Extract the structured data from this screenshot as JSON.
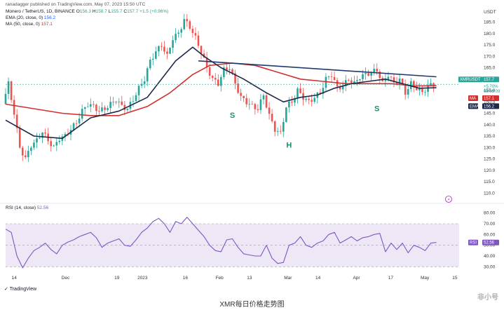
{
  "header": {
    "published_by": "ranadagger published on TradingView.com, May 07, 2023 15:50 UTC",
    "symbol_line": {
      "name": "Monero / TetherUS, 1D, BINANCE",
      "o_label": "O",
      "o": "156.3",
      "h_label": "H",
      "h": "158.7",
      "l_label": "L",
      "l": "155.7",
      "c_label": "C",
      "c": "157.7",
      "chg": "+1.5 (+0.96%)"
    },
    "ema_line": {
      "label": "EMA (20, close, 0)",
      "value": "156.2"
    },
    "ma_line": {
      "label": "MA (50, close, 0)",
      "value": "157.1"
    },
    "rsi_line": {
      "label": "RSI (14, close)",
      "value": "52.56"
    }
  },
  "tv_logo": "TradingView",
  "caption": "XMR每日价格走势图",
  "watermark": "非小号",
  "colors": {
    "up": "#26a69a",
    "down": "#ef5350",
    "ema": "#1e2a4a",
    "ma": "#d32f2f",
    "trendline": "#1e3a6e",
    "rsi": "#7e57c2",
    "rsi_band": "#ede7f6",
    "pattern_label": "#1b8f6a"
  },
  "badges": {
    "symbol": "XMRUSDT",
    "price": "157.7",
    "change": "+5.70%",
    "timer": "08:09:09",
    "ma_label": "MA",
    "ma_value": "157.1",
    "ema_label": "EMA",
    "ema_value": "156.2",
    "rsi_label": "RSI",
    "rsi_value": "52.56",
    "usdt": "USDT"
  },
  "pattern_labels": [
    "S",
    "H",
    "S"
  ],
  "chart_data": [
    {
      "type": "candlestick",
      "title": "Monero / TetherUS, 1D, BINANCE",
      "ylabel": "USDT",
      "ylim": [
        107,
        191
      ],
      "y_ticks": [
        "185.0",
        "180.0",
        "175.0",
        "170.0",
        "165.0",
        "160.0",
        "155.0",
        "150.0",
        "145.0",
        "140.0",
        "135.0",
        "130.0",
        "125.0",
        "120.0",
        "115.0",
        "110.0"
      ],
      "x_ticks": [
        "14",
        "Dec",
        "19",
        "2023",
        "16",
        "Feb",
        "13",
        "Mar",
        "14",
        "Apr",
        "17",
        "May",
        "15"
      ],
      "close_path": [
        [
          0,
          149
        ],
        [
          2,
          158
        ],
        [
          4,
          145
        ],
        [
          6,
          130
        ],
        [
          8,
          125
        ],
        [
          10,
          131
        ],
        [
          12,
          133
        ],
        [
          14,
          137
        ],
        [
          16,
          133
        ],
        [
          18,
          130
        ],
        [
          20,
          134
        ],
        [
          22,
          135
        ],
        [
          24,
          138
        ],
        [
          26,
          141
        ],
        [
          28,
          146
        ],
        [
          30,
          149
        ],
        [
          32,
          148
        ],
        [
          34,
          146
        ],
        [
          36,
          147
        ],
        [
          38,
          149
        ],
        [
          40,
          151
        ],
        [
          42,
          148
        ],
        [
          44,
          147
        ],
        [
          46,
          151
        ],
        [
          48,
          156
        ],
        [
          50,
          160
        ],
        [
          52,
          168
        ],
        [
          54,
          172
        ],
        [
          56,
          175
        ],
        [
          58,
          170
        ],
        [
          60,
          178
        ],
        [
          62,
          180
        ],
        [
          64,
          186
        ],
        [
          66,
          183
        ],
        [
          68,
          178
        ],
        [
          70,
          172
        ],
        [
          72,
          165
        ],
        [
          74,
          160
        ],
        [
          76,
          158
        ],
        [
          78,
          164
        ],
        [
          80,
          165
        ],
        [
          82,
          158
        ],
        [
          84,
          152
        ],
        [
          86,
          150
        ],
        [
          88,
          148
        ],
        [
          90,
          147
        ],
        [
          92,
          153
        ],
        [
          94,
          144
        ],
        [
          96,
          138
        ],
        [
          98,
          136
        ],
        [
          100,
          148
        ],
        [
          102,
          150
        ],
        [
          104,
          155
        ],
        [
          106,
          152
        ],
        [
          108,
          150
        ],
        [
          110,
          152
        ],
        [
          112,
          154
        ],
        [
          114,
          160
        ],
        [
          116,
          162
        ],
        [
          118,
          156
        ],
        [
          120,
          157
        ],
        [
          122,
          160
        ],
        [
          124,
          158
        ],
        [
          126,
          161
        ],
        [
          128,
          162
        ],
        [
          130,
          163
        ],
        [
          132,
          164
        ],
        [
          134,
          158
        ],
        [
          136,
          162
        ],
        [
          138,
          158
        ],
        [
          140,
          160
        ],
        [
          142,
          154
        ],
        [
          144,
          158
        ],
        [
          146,
          156
        ],
        [
          148,
          154
        ],
        [
          150,
          157
        ],
        [
          152,
          157.7
        ]
      ],
      "ema20": [
        [
          0,
          142
        ],
        [
          10,
          135
        ],
        [
          20,
          134
        ],
        [
          30,
          143
        ],
        [
          40,
          146
        ],
        [
          50,
          152
        ],
        [
          60,
          168
        ],
        [
          66,
          174
        ],
        [
          70,
          170
        ],
        [
          76,
          165
        ],
        [
          84,
          160
        ],
        [
          92,
          154
        ],
        [
          98,
          150
        ],
        [
          104,
          152
        ],
        [
          110,
          153
        ],
        [
          116,
          156
        ],
        [
          122,
          158
        ],
        [
          128,
          159
        ],
        [
          134,
          160
        ],
        [
          140,
          158
        ],
        [
          146,
          156
        ],
        [
          152,
          156.2
        ]
      ],
      "ma50": [
        [
          0,
          149
        ],
        [
          10,
          147
        ],
        [
          20,
          145
        ],
        [
          30,
          144
        ],
        [
          40,
          144
        ],
        [
          50,
          148
        ],
        [
          58,
          154
        ],
        [
          66,
          162
        ],
        [
          72,
          166
        ],
        [
          80,
          167
        ],
        [
          88,
          166
        ],
        [
          96,
          163
        ],
        [
          104,
          160
        ],
        [
          112,
          159
        ],
        [
          120,
          158
        ],
        [
          128,
          158
        ],
        [
          136,
          158
        ],
        [
          144,
          157
        ],
        [
          152,
          157.1
        ]
      ],
      "trendline": [
        [
          68,
          168
        ],
        [
          152,
          161
        ]
      ],
      "series": [
        {
          "name": "EMA (20, close, 0)",
          "last": 156.2
        },
        {
          "name": "MA (50, close, 0)",
          "last": 157.1
        }
      ]
    },
    {
      "type": "line",
      "title": "RSI (14, close)",
      "ylim": [
        25,
        85
      ],
      "y_ticks": [
        "80.00",
        "70.00",
        "60.00",
        "50.00",
        "40.00",
        "30.00"
      ],
      "band": [
        30,
        70
      ],
      "values": [
        [
          0,
          65
        ],
        [
          2,
          62
        ],
        [
          4,
          40
        ],
        [
          6,
          29
        ],
        [
          8,
          38
        ],
        [
          10,
          45
        ],
        [
          12,
          48
        ],
        [
          14,
          52
        ],
        [
          16,
          46
        ],
        [
          18,
          42
        ],
        [
          20,
          50
        ],
        [
          22,
          53
        ],
        [
          24,
          55
        ],
        [
          26,
          58
        ],
        [
          28,
          60
        ],
        [
          30,
          62
        ],
        [
          32,
          57
        ],
        [
          34,
          48
        ],
        [
          36,
          52
        ],
        [
          38,
          54
        ],
        [
          40,
          56
        ],
        [
          42,
          50
        ],
        [
          44,
          49
        ],
        [
          46,
          55
        ],
        [
          48,
          62
        ],
        [
          50,
          66
        ],
        [
          52,
          72
        ],
        [
          54,
          75
        ],
        [
          56,
          70
        ],
        [
          58,
          62
        ],
        [
          60,
          72
        ],
        [
          62,
          70
        ],
        [
          64,
          76
        ],
        [
          66,
          70
        ],
        [
          68,
          64
        ],
        [
          70,
          58
        ],
        [
          72,
          50
        ],
        [
          74,
          45
        ],
        [
          76,
          44
        ],
        [
          78,
          55
        ],
        [
          80,
          56
        ],
        [
          82,
          48
        ],
        [
          84,
          42
        ],
        [
          86,
          41
        ],
        [
          88,
          40
        ],
        [
          90,
          40
        ],
        [
          92,
          50
        ],
        [
          94,
          38
        ],
        [
          96,
          33
        ],
        [
          98,
          34
        ],
        [
          100,
          50
        ],
        [
          102,
          52
        ],
        [
          104,
          58
        ],
        [
          106,
          50
        ],
        [
          108,
          48
        ],
        [
          110,
          52
        ],
        [
          112,
          54
        ],
        [
          114,
          60
        ],
        [
          116,
          62
        ],
        [
          118,
          52
        ],
        [
          120,
          55
        ],
        [
          122,
          58
        ],
        [
          124,
          54
        ],
        [
          126,
          57
        ],
        [
          128,
          58
        ],
        [
          130,
          60
        ],
        [
          132,
          61
        ],
        [
          134,
          44
        ],
        [
          136,
          52
        ],
        [
          138,
          46
        ],
        [
          140,
          52
        ],
        [
          142,
          43
        ],
        [
          144,
          50
        ],
        [
          146,
          48
        ],
        [
          148,
          45
        ],
        [
          150,
          52
        ],
        [
          152,
          52.56
        ]
      ]
    }
  ]
}
